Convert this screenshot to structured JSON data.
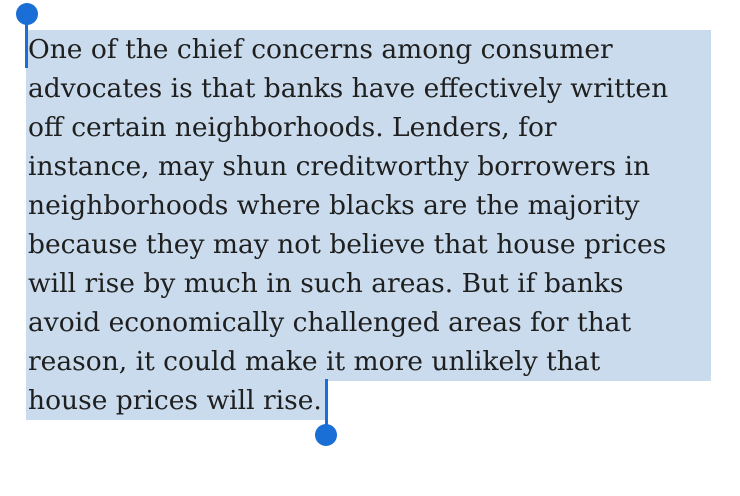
{
  "selection": {
    "lines": [
      "One of the chief concerns among consumer",
      "advocates is that banks have effectively written",
      "off certain neighborhoods. Lenders, for",
      "instance, may shun creditworthy borrowers in",
      "neighborhoods where blacks are the majority",
      "because they may not believe that house prices",
      "will rise by much in such areas. But if banks",
      "avoid economically challenged areas for that",
      "reason, it could make it more unlikely that",
      "house prices will rise."
    ],
    "highlight_color": "#c9dbec",
    "handle_color": "#1a6fd6",
    "text_color": "#1f1f1f"
  }
}
